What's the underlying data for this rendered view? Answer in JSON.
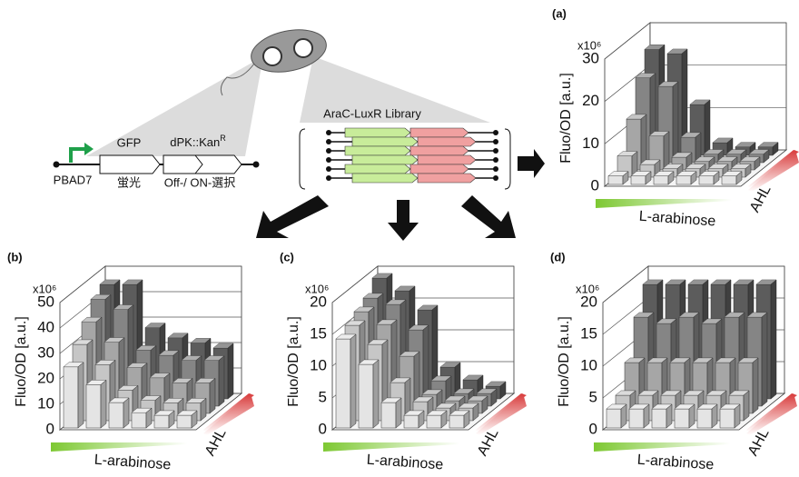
{
  "diagram": {
    "promoter": "PBAD7",
    "gene1": "GFP",
    "gene2": "dPK::Kan",
    "gene2_sup": "R",
    "gene1_role": "蛍光",
    "gene2_role": "Off-/ ON-選択",
    "library": "AraC-LuxR Library"
  },
  "chart_data": [
    {
      "type": "bar3d",
      "panel": "(a)",
      "multiplier": "x10⁶",
      "y_label": "Fluo/OD [a.u.]",
      "x_label": "L-arabinose",
      "z_label": "AHL",
      "ylim": [
        0,
        30
      ],
      "yticks": [
        0,
        10,
        20,
        30
      ],
      "series": [
        {
          "color": "#e4e4e4",
          "values": [
            2,
            2,
            2,
            2,
            2,
            2
          ]
        },
        {
          "color": "#c6c6c6",
          "values": [
            5,
            3,
            2,
            2,
            2,
            2
          ]
        },
        {
          "color": "#a6a6a6",
          "values": [
            12,
            8,
            3,
            2,
            2,
            2
          ]
        },
        {
          "color": "#858585",
          "values": [
            20,
            18,
            6,
            2,
            2,
            2
          ]
        },
        {
          "color": "#5c5c5c",
          "values": [
            25,
            24,
            12,
            3,
            2,
            2
          ]
        }
      ]
    },
    {
      "type": "bar3d",
      "panel": "(b)",
      "multiplier": "x10⁶",
      "y_label": "Fluo/OD [a.u.]",
      "x_label": "L-arabinose",
      "z_label": "AHL",
      "ylim": [
        0,
        50
      ],
      "yticks": [
        0,
        10,
        20,
        30,
        40,
        50
      ],
      "series": [
        {
          "color": "#e4e4e4",
          "values": [
            24,
            17,
            10,
            6,
            5,
            5
          ]
        },
        {
          "color": "#c6c6c6",
          "values": [
            30,
            22,
            12,
            8,
            7,
            7
          ]
        },
        {
          "color": "#a6a6a6",
          "values": [
            36,
            28,
            18,
            14,
            12,
            12
          ]
        },
        {
          "color": "#858585",
          "values": [
            42,
            38,
            22,
            20,
            18,
            18
          ]
        },
        {
          "color": "#5c5c5c",
          "values": [
            45,
            45,
            28,
            24,
            22,
            20
          ]
        }
      ]
    },
    {
      "type": "bar3d",
      "panel": "(c)",
      "multiplier": "x10⁶",
      "y_label": "Fluo/OD [a.u.]",
      "x_label": "L-arabinose",
      "z_label": "AHL",
      "ylim": [
        0,
        20
      ],
      "yticks": [
        0,
        5,
        10,
        15,
        20
      ],
      "series": [
        {
          "color": "#e4e4e4",
          "values": [
            14,
            10,
            4,
            2,
            2,
            2
          ]
        },
        {
          "color": "#c6c6c6",
          "values": [
            15,
            12,
            6,
            3,
            2,
            2
          ]
        },
        {
          "color": "#a6a6a6",
          "values": [
            16,
            14,
            9,
            3,
            2,
            2
          ]
        },
        {
          "color": "#858585",
          "values": [
            17,
            16,
            12,
            4,
            2,
            2
          ]
        },
        {
          "color": "#5c5c5c",
          "values": [
            19,
            17,
            14,
            5,
            3,
            2
          ]
        }
      ]
    },
    {
      "type": "bar3d",
      "panel": "(d)",
      "multiplier": "x10⁶",
      "y_label": "Fluo/OD [a.u.]",
      "x_label": "L-arabinose",
      "z_label": "AHL",
      "ylim": [
        0,
        20
      ],
      "yticks": [
        0,
        5,
        10,
        15,
        20
      ],
      "series": [
        {
          "color": "#e4e4e4",
          "values": [
            3,
            3,
            3,
            3,
            3,
            3
          ]
        },
        {
          "color": "#c6c6c6",
          "values": [
            4,
            4,
            4,
            4,
            4,
            4
          ]
        },
        {
          "color": "#a6a6a6",
          "values": [
            8,
            8,
            8,
            8,
            8,
            8
          ]
        },
        {
          "color": "#858585",
          "values": [
            14,
            13,
            14,
            13,
            14,
            14
          ]
        },
        {
          "color": "#5c5c5c",
          "values": [
            18,
            18,
            18,
            18,
            18,
            18
          ]
        }
      ]
    }
  ]
}
